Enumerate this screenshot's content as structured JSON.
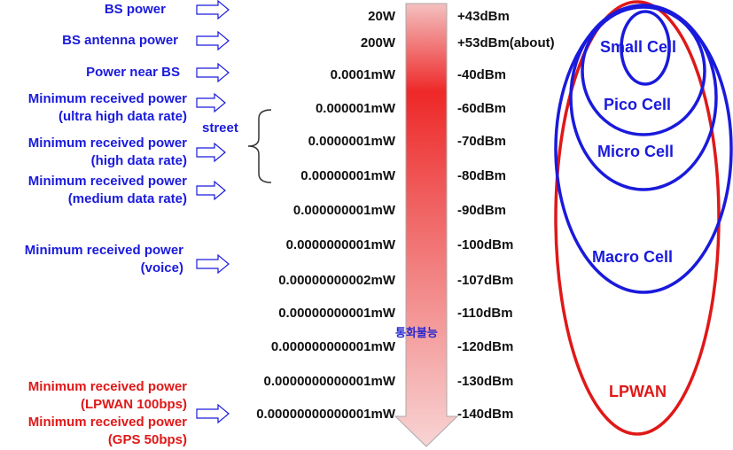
{
  "left_labels": [
    {
      "lines": [
        "BS power"
      ],
      "color": "blue"
    },
    {
      "lines": [
        "BS antenna power"
      ],
      "color": "blue"
    },
    {
      "lines": [
        "Power near BS"
      ],
      "color": "blue"
    },
    {
      "lines": [
        "Minimum received power",
        "(ultra high data rate)"
      ],
      "color": "blue"
    },
    {
      "lines": [
        "Minimum received power",
        "(high data rate)"
      ],
      "color": "blue"
    },
    {
      "lines": [
        "Minimum received power",
        "(medium data rate)"
      ],
      "color": "blue"
    },
    {
      "lines": [
        "Minimum received power",
        "(voice)"
      ],
      "color": "blue"
    },
    {
      "lines": [
        "Minimum received power",
        "(LPWAN 100bps)"
      ],
      "color": "red"
    },
    {
      "lines": [
        "Minimum received power",
        "(GPS 50bps)"
      ],
      "color": "red"
    }
  ],
  "street_label": "street",
  "power_levels": [
    {
      "watt": "20W",
      "dbm": "+43dBm"
    },
    {
      "watt": "200W",
      "dbm": "+53dBm(about)"
    },
    {
      "watt": "0.0001mW",
      "dbm": "-40dBm"
    },
    {
      "watt": "0.000001mW",
      "dbm": "-60dBm"
    },
    {
      "watt": "0.0000001mW",
      "dbm": "-70dBm"
    },
    {
      "watt": "0.00000001mW",
      "dbm": "-80dBm"
    },
    {
      "watt": "0.000000001mW",
      "dbm": "-90dBm"
    },
    {
      "watt": "0.0000000001mW",
      "dbm": "-100dBm"
    },
    {
      "watt": "0.00000000002mW",
      "dbm": "-107dBm"
    },
    {
      "watt": "0.00000000001mW",
      "dbm": "-110dBm"
    },
    {
      "watt": "0.000000000001mW",
      "dbm": "-120dBm"
    },
    {
      "watt": "0.0000000000001mW",
      "dbm": "-130dBm"
    },
    {
      "watt": "0.00000000000001mW",
      "dbm": "-140dBm"
    }
  ],
  "arrow_label": "통화불능",
  "cells": {
    "small": "Small Cell",
    "pico": "Pico Cell",
    "micro": "Micro Cell",
    "macro": "Macro Cell",
    "lpwan": "LPWAN"
  },
  "colors": {
    "blue": "#1a1adc",
    "red": "#e01818",
    "arrow_top": "#f2b6b6",
    "arrow_mid": "#ee2020",
    "arrow_bottom": "#f6cccc"
  }
}
